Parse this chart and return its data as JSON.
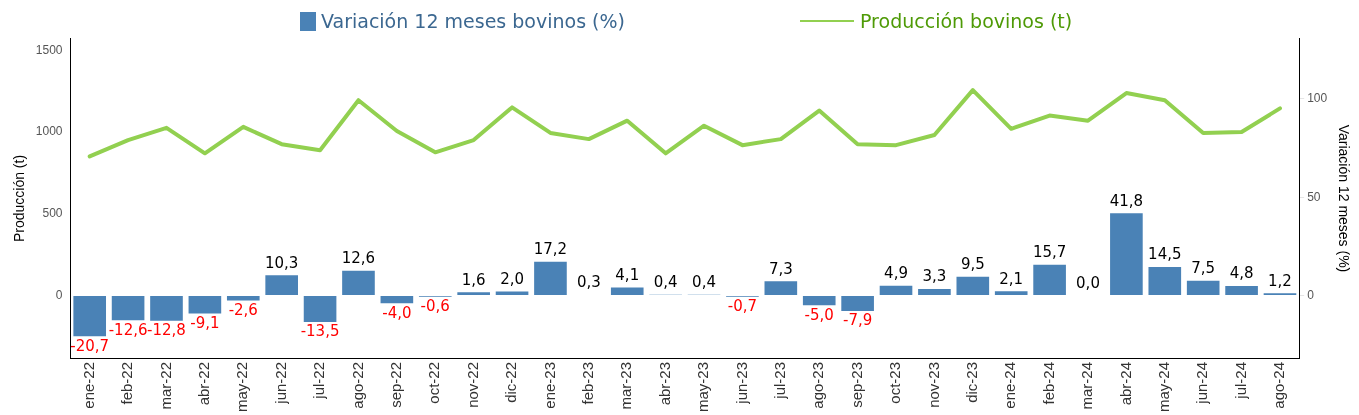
{
  "chart_data": {
    "type": "bar",
    "categories": [
      "ene-22",
      "feb-22",
      "mar-22",
      "abr-22",
      "may-22",
      "jun-22",
      "jul-22",
      "ago-22",
      "sep-22",
      "oct-22",
      "nov-22",
      "dic-22",
      "ene-23",
      "feb-23",
      "mar-23",
      "abr-23",
      "may-23",
      "jun-23",
      "jul-23",
      "ago-23",
      "sep-23",
      "oct-23",
      "nov-23",
      "dic-23",
      "ene-24",
      "feb-24",
      "mar-24",
      "abr-24",
      "may-24",
      "jun-24",
      "jul-24",
      "ago-24"
    ],
    "series": [
      {
        "name": "Variación 12 meses bovinos (%)",
        "axis": "y2",
        "color": "#4a82b6",
        "values": [
          -20.7,
          -12.6,
          -12.8,
          -9.1,
          -2.6,
          10.3,
          -13.5,
          12.6,
          -4.0,
          -0.6,
          1.6,
          2.0,
          17.2,
          0.3,
          4.1,
          0.4,
          0.4,
          -0.7,
          7.3,
          -5.0,
          -7.9,
          4.9,
          3.3,
          9.5,
          2.1,
          15.7,
          0.0,
          41.8,
          14.5,
          7.5,
          4.8,
          1.2
        ],
        "value_labels": [
          "-20,7",
          "-12,6",
          "-12,8",
          "-9,1",
          "-2,6",
          "10,3",
          "-13,5",
          "12,6",
          "-4,0",
          "-0,6",
          "1,6",
          "2,0",
          "17,2",
          "0,3",
          "4,1",
          "0,4",
          "0,4",
          "-0,7",
          "7,3",
          "-5,0",
          "-7,9",
          "4,9",
          "3,3",
          "9,5",
          "2,1",
          "15,7",
          "0,0",
          "41,8",
          "14,5",
          "7,5",
          "4,8",
          "1,2"
        ]
      },
      {
        "name": "Producción bovinos (t)",
        "type": "line",
        "axis": "y",
        "color": "#92d050",
        "values": [
          850,
          950,
          1025,
          869,
          1031,
          925,
          888,
          1194,
          1006,
          875,
          950,
          1150,
          994,
          956,
          1069,
          869,
          1038,
          919,
          956,
          1131,
          925,
          919,
          981,
          1256,
          1019,
          1100,
          1069,
          1238,
          1194,
          994,
          1000,
          1144
        ]
      }
    ],
    "ylabel": "Producción (t)",
    "y2label": "Variación 12 meses (%)",
    "ylim": [
      -390,
      1575
    ],
    "yticks": [
      0,
      500,
      1000,
      1500
    ],
    "y2lim": [
      -32.3,
      131
    ],
    "y2ticks": [
      0,
      50,
      100
    ],
    "grid": false,
    "legend": "top",
    "marker": "none",
    "line_style": "solid"
  }
}
